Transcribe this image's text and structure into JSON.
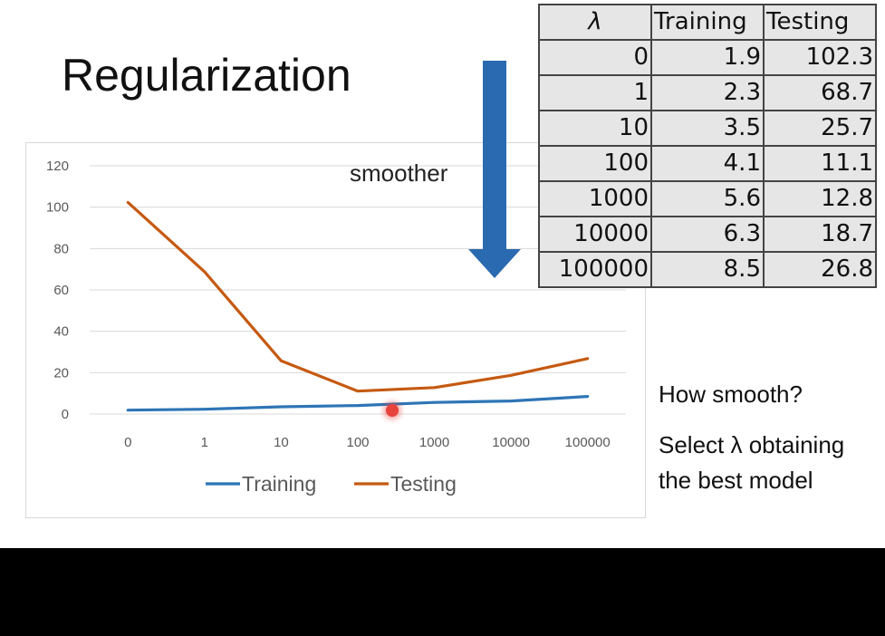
{
  "slide": {
    "title": "Regularization",
    "smoother_label": "smoother",
    "question": "How smooth?",
    "instruction_line1": "Select λ obtaining",
    "instruction_line2": "the best model"
  },
  "table": {
    "headers": [
      "λ",
      "Training",
      "Testing"
    ],
    "rows": [
      [
        "0",
        "1.9",
        "102.3"
      ],
      [
        "1",
        "2.3",
        "68.7"
      ],
      [
        "10",
        "3.5",
        "25.7"
      ],
      [
        "100",
        "4.1",
        "11.1"
      ],
      [
        "1000",
        "5.6",
        "12.8"
      ],
      [
        "10000",
        "6.3",
        "18.7"
      ],
      [
        "100000",
        "8.5",
        "26.8"
      ]
    ]
  },
  "chart_data": {
    "type": "line",
    "categories": [
      "0",
      "1",
      "10",
      "100",
      "1000",
      "10000",
      "100000"
    ],
    "series": [
      {
        "name": "Training",
        "color": "#2e75b6",
        "values": [
          1.9,
          2.3,
          3.5,
          4.1,
          5.6,
          6.3,
          8.5
        ]
      },
      {
        "name": "Testing",
        "color": "#c55a11",
        "values": [
          102.3,
          68.7,
          25.7,
          11.1,
          12.8,
          18.7,
          26.8
        ]
      }
    ],
    "title": "",
    "xlabel": "",
    "ylabel": "",
    "ylim": [
      0,
      120
    ],
    "yticks": [
      0,
      20,
      40,
      60,
      80,
      100,
      120
    ],
    "grid": true,
    "legend": "bottom"
  },
  "colors": {
    "arrow": "#2a6ab0",
    "cursor": "#e8433c"
  }
}
